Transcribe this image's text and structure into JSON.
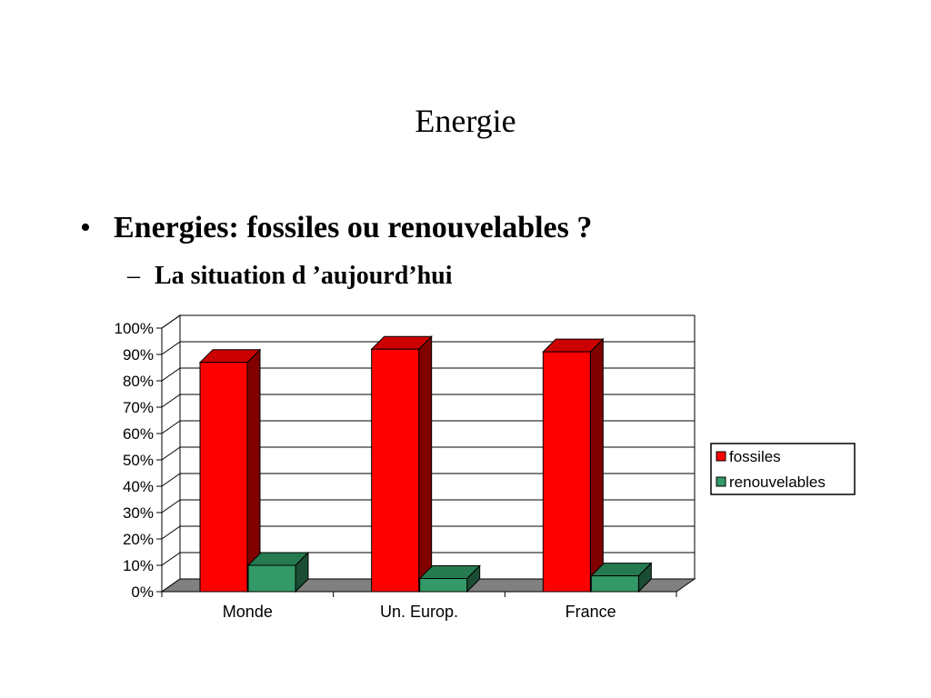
{
  "slide": {
    "title": "Energie",
    "bullet": "Energies: fossiles ou renouvelables ?",
    "sub_bullet": "La situation d ’aujourd’hui"
  },
  "chart_data": {
    "type": "bar",
    "title": "",
    "xlabel": "",
    "ylabel": "",
    "categories": [
      "Monde",
      "Un. Europ.",
      "France"
    ],
    "series": [
      {
        "name": "fossiles",
        "values": [
          87,
          92,
          91
        ],
        "color": "#ff0000",
        "side_color": "#800000",
        "top_color": "#cc0000"
      },
      {
        "name": "renouvelables",
        "values": [
          10,
          5,
          6
        ],
        "color": "#339966",
        "side_color": "#1a4d33",
        "top_color": "#267a4f"
      }
    ],
    "ylim": [
      0,
      100
    ],
    "y_ticks": [
      "0%",
      "10%",
      "20%",
      "30%",
      "40%",
      "50%",
      "60%",
      "70%",
      "80%",
      "90%",
      "100%"
    ],
    "grid": true,
    "legend_position": "right",
    "floor_color": "#808080"
  }
}
